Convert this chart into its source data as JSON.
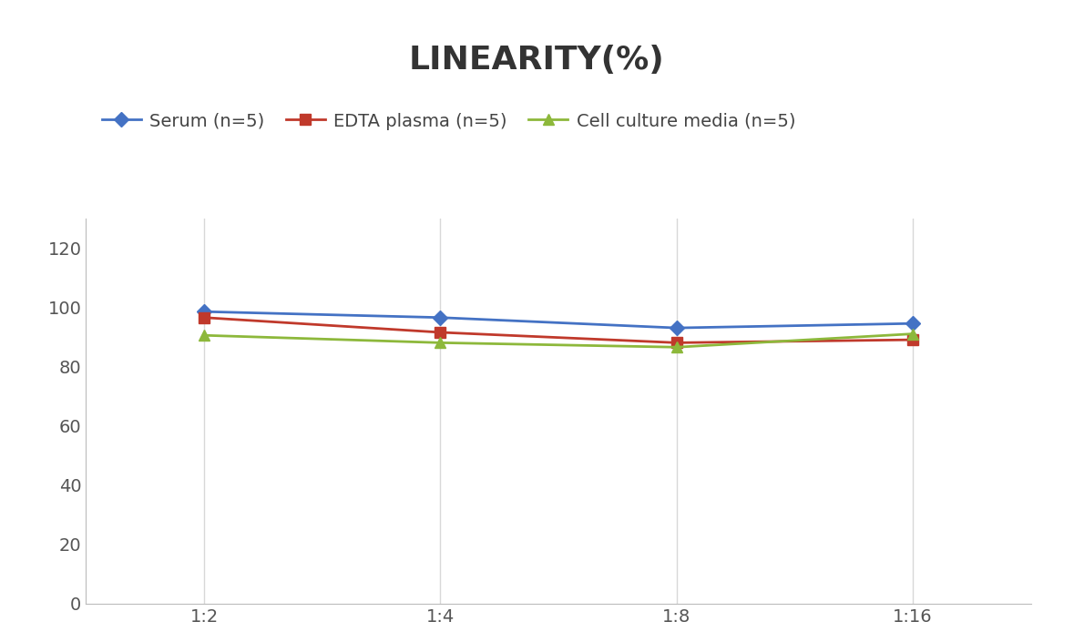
{
  "title": "LINEARITY(%)",
  "x_labels": [
    "1:2",
    "1:4",
    "1:8",
    "1:16"
  ],
  "x_positions": [
    0,
    1,
    2,
    3
  ],
  "series": [
    {
      "name": "Serum (n=5)",
      "values": [
        98.5,
        96.5,
        93.0,
        94.5
      ],
      "color": "#4472C4",
      "marker": "D",
      "marker_size": 8
    },
    {
      "name": "EDTA plasma (n=5)",
      "values": [
        96.5,
        91.5,
        88.0,
        89.0
      ],
      "color": "#C0392B",
      "marker": "s",
      "marker_size": 8
    },
    {
      "name": "Cell culture media (n=5)",
      "values": [
        90.5,
        88.0,
        86.5,
        91.0
      ],
      "color": "#8DB83B",
      "marker": "^",
      "marker_size": 9
    }
  ],
  "ylim": [
    0,
    130
  ],
  "yticks": [
    0,
    20,
    40,
    60,
    80,
    100,
    120
  ],
  "background_color": "#FFFFFF",
  "grid_color": "#D8D8D8",
  "title_fontsize": 26,
  "legend_fontsize": 14,
  "tick_fontsize": 14
}
